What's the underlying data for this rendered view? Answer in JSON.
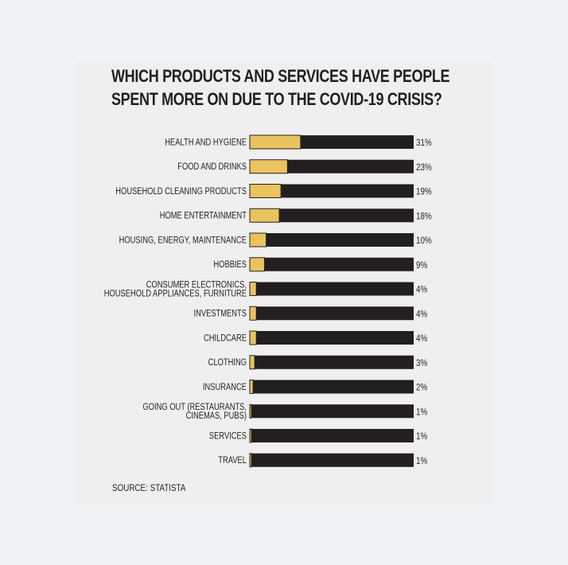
{
  "chart_data": {
    "type": "bar",
    "orientation": "horizontal",
    "title": "WHICH PRODUCTS AND SERVICES HAVE PEOPLE SPENT MORE ON DUE TO THE COVID-19 CRISIS?",
    "title_lines": [
      "WHICH PRODUCTS AND SERVICES HAVE PEOPLE",
      "SPENT MORE ON DUE TO THE COVID-19 CRISIS?"
    ],
    "source": "SOURCE: STATISTA",
    "unit": "%",
    "xlim": [
      0,
      100
    ],
    "grid": false,
    "legend": "none",
    "colors": {
      "value": "#e8c35e",
      "track": "#231f20",
      "text": "#231f20"
    },
    "categories": [
      "HEALTH AND HYGIENE",
      "FOOD AND DRINKS",
      "HOUSEHOLD CLEANING PRODUCTS",
      "HOME ENTERTAINMENT",
      "HOUSING, ENERGY, MAINTENANCE",
      "HOBBIES",
      "CONSUMER ELECTRONICS, HOUSEHOLD APPLIANCES, FURNITURE",
      "INVESTMENTS",
      "CHILDCARE",
      "CLOTHING",
      "INSURANCE",
      "GOING OUT (RESTAURANTS, CINEMAS, PUBS)",
      "SERVICES",
      "TRAVEL"
    ],
    "category_lines": [
      [
        "HEALTH AND HYGIENE"
      ],
      [
        "FOOD AND DRINKS"
      ],
      [
        "HOUSEHOLD CLEANING PRODUCTS"
      ],
      [
        "HOME ENTERTAINMENT"
      ],
      [
        "HOUSING, ENERGY, MAINTENANCE"
      ],
      [
        "HOBBIES"
      ],
      [
        "CONSUMER ELECTRONICS,",
        "HOUSEHOLD APPLIANCES, FURNITURE"
      ],
      [
        "INVESTMENTS"
      ],
      [
        "CHILDCARE"
      ],
      [
        "CLOTHING"
      ],
      [
        "INSURANCE"
      ],
      [
        "GOING OUT (RESTAURANTS,",
        "CINEMAS, PUBS)"
      ],
      [
        "SERVICES"
      ],
      [
        "TRAVEL"
      ]
    ],
    "values": [
      31,
      23,
      19,
      18,
      10,
      9,
      4,
      4,
      4,
      3,
      2,
      1,
      1,
      1
    ],
    "value_labels": [
      "31%",
      "23%",
      "19%",
      "18%",
      "10%",
      "9%",
      "4%",
      "4%",
      "4%",
      "3%",
      "2%",
      "1%",
      "1%",
      "1%"
    ]
  }
}
